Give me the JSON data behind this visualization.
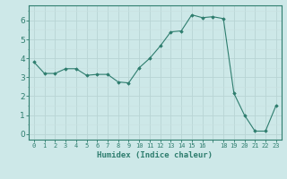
{
  "x_data": [
    0,
    1,
    2,
    3,
    4,
    5,
    6,
    7,
    8,
    9,
    10,
    11,
    12,
    13,
    14,
    15,
    16,
    17,
    18,
    19,
    20,
    21,
    22,
    23
  ],
  "y_data": [
    3.8,
    3.2,
    3.2,
    3.45,
    3.45,
    3.1,
    3.15,
    3.15,
    2.75,
    2.7,
    3.5,
    4.0,
    4.65,
    5.4,
    5.45,
    6.3,
    6.15,
    6.2,
    6.1,
    2.15,
    1.0,
    0.15,
    0.15,
    1.5
  ],
  "xtick_labels": [
    "0",
    "1",
    "2",
    "3",
    "4",
    "5",
    "6",
    "7",
    "8",
    "9",
    "10",
    "11",
    "12",
    "13",
    "14",
    "15",
    "16",
    "",
    "18",
    "19",
    "20",
    "21",
    "22",
    "23"
  ],
  "ylim": [
    -0.3,
    6.8
  ],
  "xlim": [
    -0.5,
    23.5
  ],
  "yticks": [
    0,
    1,
    2,
    3,
    4,
    5,
    6
  ],
  "line_color": "#2e7d6e",
  "marker_color": "#2e7d6e",
  "bg_color": "#cde8e8",
  "grid_color_major": "#b8d4d4",
  "grid_color_minor": "#c8e0e0",
  "xlabel": "Humidex (Indice chaleur)",
  "tick_color": "#2e7d6e",
  "label_color": "#2e7d6e",
  "spine_color": "#2e7d6e"
}
